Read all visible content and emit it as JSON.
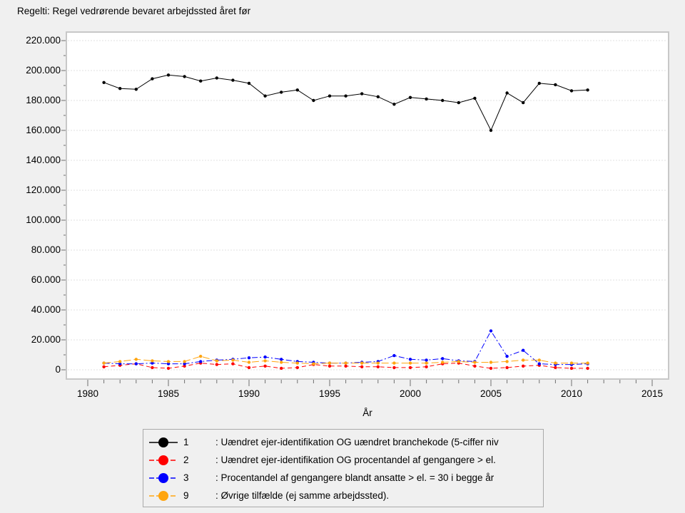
{
  "title": "Regelti: Regel vedrørende bevaret arbejdssted året før",
  "colors": {
    "page_bg": "#f0f0f0",
    "plot_bg": "#ffffff",
    "plot_border": "#c8c8c8",
    "gridline": "#e2e2e2",
    "tick": "#707070",
    "series1": "#000000",
    "series2": "#ff0000",
    "series3": "#0000ff",
    "series9": "#ffa510"
  },
  "chart_data": {
    "type": "line",
    "title": "Regelti: Regel vedrørende bevaret arbejdssted året før",
    "xlabel": "År",
    "ylabel": "",
    "xlim": [
      1978.7,
      2016.1
    ],
    "ylim": [
      0,
      225000
    ],
    "grid": "horizontal-dotted",
    "legend_position": "bottom",
    "x_ticks_major": [
      1980,
      1985,
      1990,
      1995,
      2000,
      2005,
      2010,
      2015
    ],
    "x_ticks_minor_step": 1,
    "y_ticks": [
      {
        "value": 0,
        "label": "0"
      },
      {
        "value": 20000,
        "label": "20.000"
      },
      {
        "value": 40000,
        "label": "40.000"
      },
      {
        "value": 60000,
        "label": "60.000"
      },
      {
        "value": 80000,
        "label": "80.000"
      },
      {
        "value": 100000,
        "label": "100.000"
      },
      {
        "value": 120000,
        "label": "120.000"
      },
      {
        "value": 140000,
        "label": "140.000"
      },
      {
        "value": 160000,
        "label": "160.000"
      },
      {
        "value": 180000,
        "label": "180.000"
      },
      {
        "value": 200000,
        "label": "200.000"
      },
      {
        "value": 220000,
        "label": "220.000"
      }
    ],
    "y_minor_tick_step": 10000,
    "x": [
      1981,
      1982,
      1983,
      1984,
      1985,
      1986,
      1987,
      1988,
      1989,
      1990,
      1991,
      1992,
      1993,
      1994,
      1995,
      1996,
      1997,
      1998,
      1999,
      2000,
      2001,
      2002,
      2003,
      2004,
      2005,
      2006,
      2007,
      2008,
      2009,
      2010,
      2011
    ],
    "series": [
      {
        "id": "1",
        "label": ": Uændret ejer-identifikation OG uændret branchekode (5-ciffer niv",
        "color": "#000000",
        "line_style": "solid",
        "values": [
          192000,
          188000,
          187500,
          194500,
          197000,
          196000,
          193000,
          195000,
          193500,
          191500,
          183000,
          185500,
          187000,
          180000,
          183000,
          183000,
          184500,
          182500,
          177500,
          182000,
          181000,
          180000,
          178500,
          181500,
          160000,
          185000,
          178500,
          191500,
          190500,
          186500,
          187000
        ]
      },
      {
        "id": "2",
        "label": ": Uændret ejer-identifikation OG procentandel af gengangere > el.",
        "color": "#ff0000",
        "line_style": "dashed",
        "values": [
          2000,
          3000,
          4000,
          1500,
          1000,
          2500,
          4500,
          3500,
          4000,
          1500,
          2500,
          1000,
          1500,
          3500,
          2500,
          2500,
          2000,
          2000,
          1500,
          1500,
          2000,
          4000,
          4500,
          2500,
          1000,
          1500,
          2500,
          3000,
          1500,
          1000,
          1000
        ]
      },
      {
        "id": "3",
        "label": ": Procentandel af gengangere blandt ansatte > el. = 30 i begge år",
        "color": "#0000ff",
        "line_style": "dashdot",
        "values": [
          4500,
          4000,
          4000,
          4500,
          4000,
          4000,
          5500,
          6500,
          7000,
          8000,
          8500,
          7000,
          5500,
          5000,
          4500,
          4500,
          5000,
          5500,
          9500,
          7000,
          6500,
          7500,
          6000,
          5500,
          26000,
          9000,
          13000,
          4000,
          3500,
          3500,
          4000
        ]
      },
      {
        "id": "9",
        "label": ": Øvrige tilfælde (ej samme arbejdssted).",
        "color": "#ffa510",
        "line_style": "longdash",
        "values": [
          4500,
          5500,
          7000,
          6000,
          5500,
          5500,
          9000,
          6000,
          6500,
          5000,
          6000,
          5000,
          4500,
          4000,
          4500,
          4500,
          4500,
          4500,
          4500,
          4500,
          4500,
          5000,
          5500,
          5000,
          5000,
          5500,
          6500,
          6500,
          4500,
          4500,
          4500
        ]
      }
    ]
  }
}
